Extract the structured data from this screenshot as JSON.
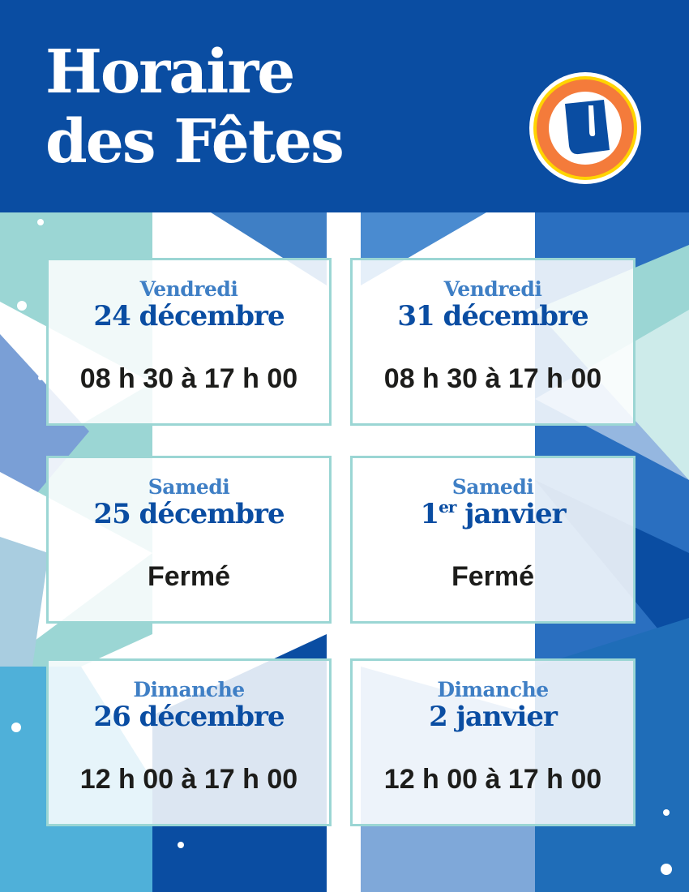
{
  "header": {
    "title_line1": "Horaire",
    "title_line2": "des Fêtes",
    "logo": "U-brand-logo",
    "logo_letter": "U"
  },
  "colors": {
    "brand_blue": "#0a4da2",
    "light_blue": "#3f7fc5",
    "teal": "#9bd6d4",
    "logo_orange": "#f47b3b",
    "logo_yellow": "#ffd400"
  },
  "schedule": [
    {
      "day": "Vendredi",
      "date": "24 décembre",
      "hours": "08 h 30 à 17 h 00"
    },
    {
      "day": "Vendredi",
      "date": "31 décembre",
      "hours": "08 h 30 à 17 h 00"
    },
    {
      "day": "Samedi",
      "date": "25 décembre",
      "hours": "Fermé"
    },
    {
      "day": "Samedi",
      "date_num": "1",
      "date_sup": "er",
      "date_rest": " janvier",
      "hours": "Fermé"
    },
    {
      "day": "Dimanche",
      "date": "26 décembre",
      "hours": "12 h 00 à 17 h 00"
    },
    {
      "day": "Dimanche",
      "date": "2 janvier",
      "hours": "12 h 00 à 17 h 00"
    }
  ]
}
